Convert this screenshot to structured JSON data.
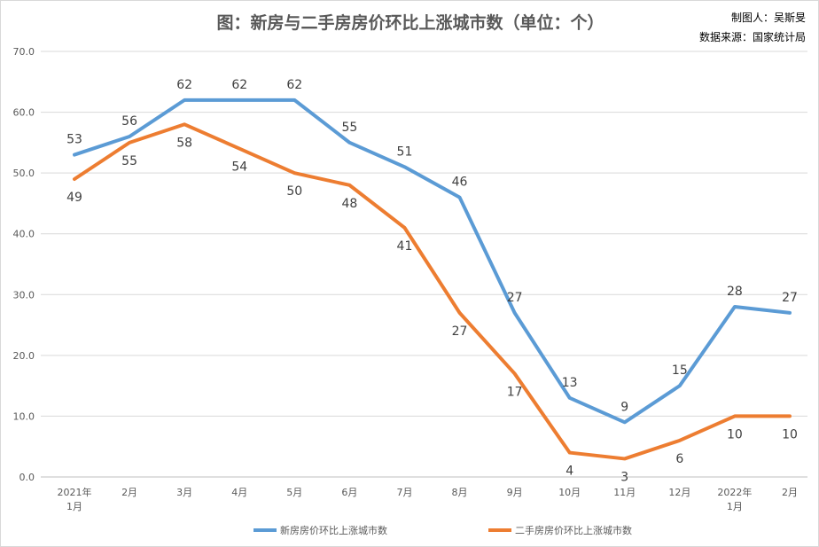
{
  "chart_data": {
    "type": "line",
    "title": "图：新房与二手房房价环比上涨城市数（单位：个）",
    "credits": [
      "制图人：吴斯旻",
      "数据来源：国家统计局"
    ],
    "categories": [
      [
        "2021年",
        "1月"
      ],
      [
        "2月"
      ],
      [
        "3月"
      ],
      [
        "4月"
      ],
      [
        "5月"
      ],
      [
        "6月"
      ],
      [
        "7月"
      ],
      [
        "8月"
      ],
      [
        "9月"
      ],
      [
        "10月"
      ],
      [
        "11月"
      ],
      [
        "12月"
      ],
      [
        "2022年",
        "1月"
      ],
      [
        "2月"
      ]
    ],
    "ylim": [
      0,
      70
    ],
    "yticks": [
      0,
      10,
      20,
      30,
      40,
      50,
      60,
      70
    ],
    "grid": true,
    "legend": "bottom",
    "series": [
      {
        "name": "新房房价环比上涨城市数",
        "color": "#5b9bd5",
        "label_pos": "above",
        "values": [
          53,
          56,
          62,
          62,
          62,
          55,
          51,
          46,
          27,
          13,
          9,
          15,
          28,
          27
        ]
      },
      {
        "name": "二手房房价环比上涨城市数",
        "color": "#ed7d31",
        "label_pos": "below",
        "values": [
          49,
          55,
          58,
          54,
          50,
          48,
          41,
          27,
          17,
          4,
          3,
          6,
          10,
          10
        ]
      }
    ]
  }
}
